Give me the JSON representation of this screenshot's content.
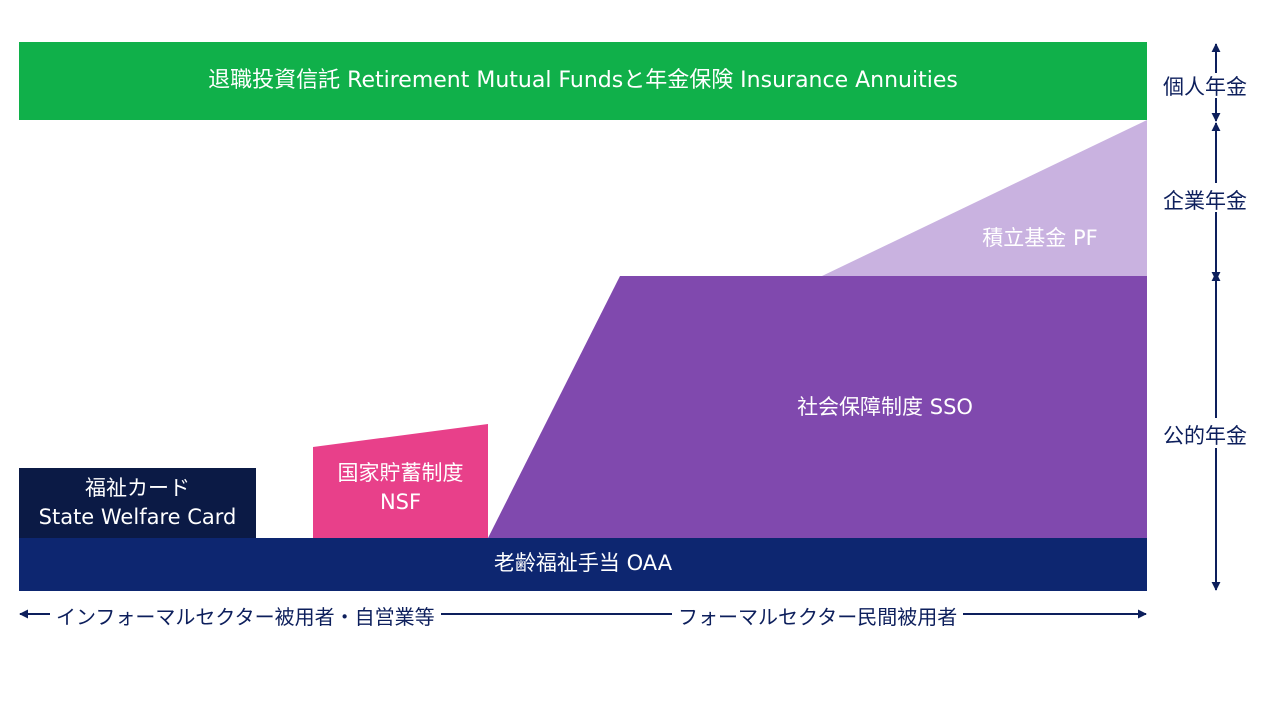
{
  "blocks": {
    "retirement": "退職投資信託 Retirement Mutual Fundsと年金保険 Insurance Annuities",
    "pf": "積立基金 PF",
    "sso": "社会保障制度 SSO",
    "nsf_line1": "国家貯蓄制度",
    "nsf_line2": "NSF",
    "welfare_line1": "福祉カード",
    "welfare_line2": "State Welfare Card",
    "oaa": "老齢福祉手当 OAA"
  },
  "side_labels": {
    "personal": "個人年金",
    "corporate": "企業年金",
    "public": "公的年金"
  },
  "bottom_labels": {
    "informal": "インフォーマルセクター被用者・自営業等",
    "formal": "フォーマルセクター民間被用者"
  },
  "colors": {
    "green": "#10b04a",
    "light_purple": "#c9b2e0",
    "purple": "#8049ae",
    "pink": "#e8408a",
    "dark_navy": "#0b1a45",
    "navy": "#0d2670",
    "arrow": "#0d1f5c"
  }
}
